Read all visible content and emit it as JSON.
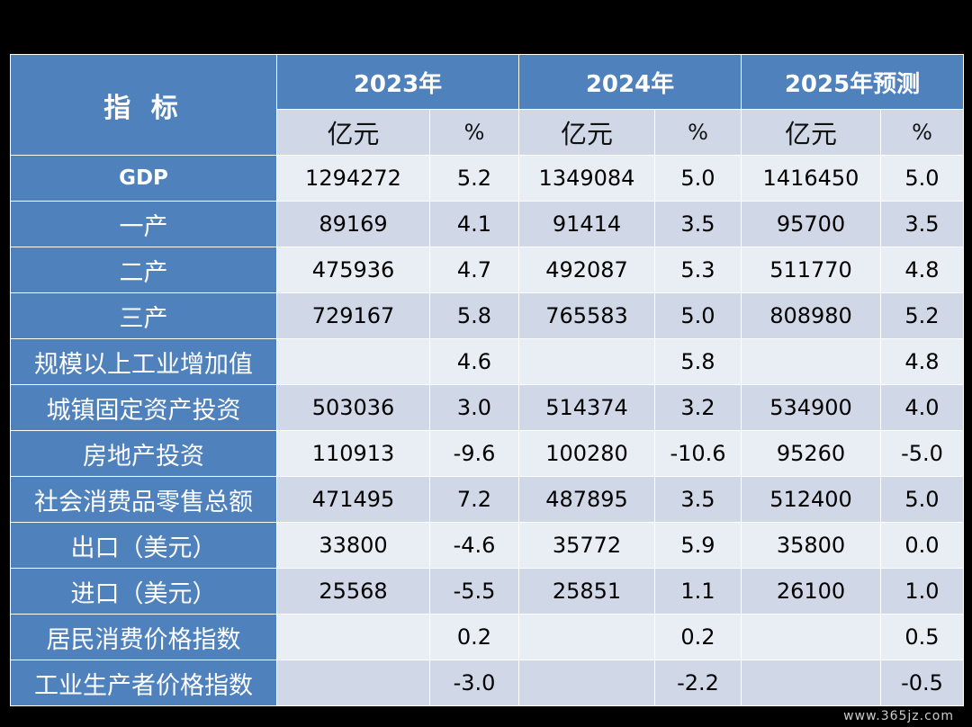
{
  "table": {
    "header_label": "指 标",
    "years": [
      "2023年",
      "2024年",
      "2025年预测"
    ],
    "units": {
      "amount": "亿元",
      "percent": "%"
    },
    "rows": [
      {
        "label": "GDP",
        "v": [
          "1294272",
          "5.2",
          "1349084",
          "5.0",
          "1416450",
          "5.0"
        ]
      },
      {
        "label": "一产",
        "v": [
          "89169",
          "4.1",
          "91414",
          "3.5",
          "95700",
          "3.5"
        ]
      },
      {
        "label": "二产",
        "v": [
          "475936",
          "4.7",
          "492087",
          "5.3",
          "511770",
          "4.8"
        ]
      },
      {
        "label": "三产",
        "v": [
          "729167",
          "5.8",
          "765583",
          "5.0",
          "808980",
          "5.2"
        ]
      },
      {
        "label": "规模以上工业增加值",
        "v": [
          "",
          "4.6",
          "",
          "5.8",
          "",
          "4.8"
        ]
      },
      {
        "label": "城镇固定资产投资",
        "v": [
          "503036",
          "3.0",
          "514374",
          "3.2",
          "534900",
          "4.0"
        ]
      },
      {
        "label": "房地产投资",
        "v": [
          "110913",
          "-9.6",
          "100280",
          "-10.6",
          "95260",
          "-5.0"
        ]
      },
      {
        "label": "社会消费品零售总额",
        "v": [
          "471495",
          "7.2",
          "487895",
          "3.5",
          "512400",
          "5.0"
        ]
      },
      {
        "label": "出口（美元）",
        "v": [
          "33800",
          "-4.6",
          "35772",
          "5.9",
          "35800",
          "0.0"
        ]
      },
      {
        "label": "进口（美元）",
        "v": [
          "25568",
          "-5.5",
          "25851",
          "1.1",
          "26100",
          "1.0"
        ]
      },
      {
        "label": "居民消费价格指数",
        "v": [
          "",
          "0.2",
          "",
          "0.2",
          "",
          "0.5"
        ]
      },
      {
        "label": "工业生产者价格指数",
        "v": [
          "",
          "-3.0",
          "",
          "-2.2",
          "",
          "-0.5"
        ]
      }
    ]
  },
  "watermark": "www.365jz.com",
  "colors": {
    "header_blue": "#4f81bd",
    "row_light": "#e9edf4",
    "row_mid": "#d0d8e8",
    "background": "#000000"
  }
}
